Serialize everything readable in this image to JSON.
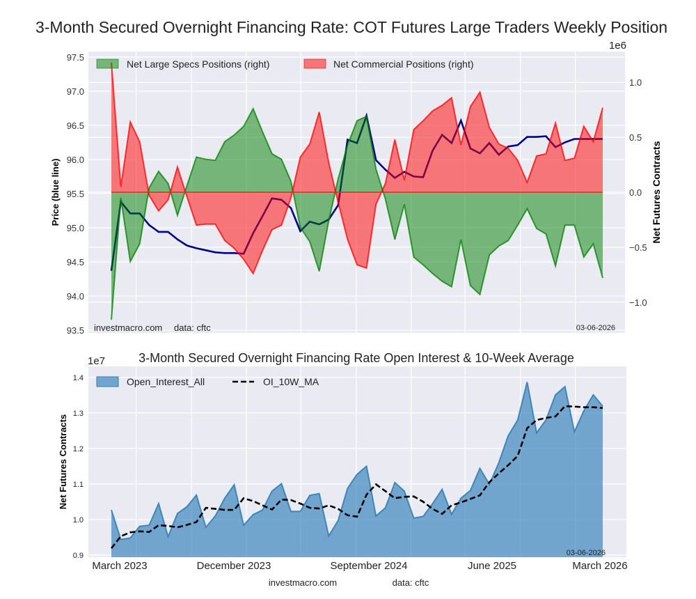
{
  "title": "3-Month Secured Overnight Financing Rate: COT Futures Large Traders Weekly Position",
  "chart_data": [
    {
      "type": "area",
      "ylabel": "Price (blue line)",
      "y2label": "Net Futures Contracts",
      "y2_multiplier": "1e6",
      "ylim": [
        93.46,
        97.58
      ],
      "y2lim": [
        -1.28,
        1.28
      ],
      "yticks": [
        "93.5",
        "94.0",
        "94.5",
        "95.0",
        "95.5",
        "96.0",
        "96.5",
        "97.0",
        "97.5"
      ],
      "y2ticks": [
        "−1.0",
        "−0.5",
        "0.0",
        "0.5",
        "1.0"
      ],
      "grid": true,
      "legend_placement": "top-left",
      "watermark": "investmacro.com",
      "source": "data: cftc",
      "date_label": "03-06-2026",
      "colors": {
        "specs": "#008000",
        "commercial": "#ff0000",
        "price": "#00008b",
        "background": "#eaeaf2"
      },
      "dates": [
        "2023-03-07",
        "2023-03-28",
        "2023-04-18",
        "2023-05-09",
        "2023-05-30",
        "2023-06-20",
        "2023-07-11",
        "2023-08-01",
        "2023-08-22",
        "2023-09-12",
        "2023-10-03",
        "2023-10-24",
        "2023-11-14",
        "2023-12-05",
        "2023-12-26",
        "2024-01-16",
        "2024-02-06",
        "2024-02-27",
        "2024-03-19",
        "2024-04-09",
        "2024-04-30",
        "2024-05-21",
        "2024-06-11",
        "2024-07-02",
        "2024-07-23",
        "2024-08-13",
        "2024-09-03",
        "2024-09-24",
        "2024-10-15",
        "2024-11-05",
        "2024-11-26",
        "2024-12-17",
        "2025-01-07",
        "2025-01-28",
        "2025-02-18",
        "2025-03-11",
        "2025-04-01",
        "2025-04-22",
        "2025-05-13",
        "2025-06-03",
        "2025-06-24",
        "2025-07-15",
        "2025-08-05",
        "2025-08-26",
        "2025-09-16",
        "2025-10-07",
        "2025-10-28",
        "2025-11-18",
        "2025-12-09",
        "2025-12-30",
        "2026-01-20",
        "2026-02-10",
        "2026-03-03"
      ],
      "series": [
        {
          "name": "Net Large Specs Positions (right)",
          "axis": "right",
          "values": [
            -1.16,
            -0.05,
            -0.63,
            -0.47,
            0.04,
            0.19,
            0.08,
            -0.21,
            0.06,
            0.32,
            0.3,
            0.29,
            0.46,
            0.52,
            0.6,
            0.76,
            0.55,
            0.35,
            0.3,
            0.1,
            -0.32,
            -0.45,
            -0.72,
            -0.26,
            0.12,
            0.43,
            0.65,
            0.69,
            0.21,
            -0.06,
            -0.43,
            -0.11,
            -0.59,
            -0.66,
            -0.74,
            -0.81,
            -0.86,
            -0.43,
            -0.85,
            -0.93,
            -0.57,
            -0.49,
            -0.44,
            -0.3,
            -0.15,
            -0.33,
            -0.38,
            -0.67,
            -0.3,
            -0.3,
            -0.59,
            -0.47,
            -0.78
          ]
        },
        {
          "name": "Net Commercial Positions (right)",
          "axis": "right",
          "values": [
            1.18,
            0.05,
            0.64,
            0.46,
            -0.03,
            -0.17,
            -0.07,
            0.23,
            -0.04,
            -0.3,
            -0.29,
            -0.29,
            -0.44,
            -0.51,
            -0.61,
            -0.74,
            -0.53,
            -0.34,
            -0.3,
            -0.05,
            0.32,
            0.44,
            0.73,
            0.27,
            -0.09,
            -0.43,
            -0.66,
            -0.69,
            -0.11,
            0.08,
            0.48,
            0.11,
            0.57,
            0.65,
            0.74,
            0.79,
            0.86,
            0.43,
            0.78,
            0.91,
            0.59,
            0.44,
            0.4,
            0.29,
            0.09,
            0.33,
            0.35,
            0.63,
            0.29,
            0.31,
            0.6,
            0.46,
            0.77
          ]
        },
        {
          "axis": "left",
          "values": [
            94.37,
            95.38,
            95.21,
            95.21,
            95.04,
            94.94,
            94.94,
            94.83,
            94.74,
            94.7,
            94.67,
            94.64,
            94.63,
            94.63,
            94.62,
            94.92,
            95.17,
            95.43,
            95.41,
            95.29,
            94.95,
            95.09,
            95.05,
            95.12,
            95.33,
            96.29,
            96.24,
            96.64,
            95.99,
            95.85,
            95.73,
            95.82,
            95.75,
            95.74,
            96.13,
            96.36,
            96.24,
            96.57,
            96.16,
            96.09,
            96.24,
            96.07,
            96.19,
            96.21,
            96.33,
            96.33,
            96.34,
            96.18,
            96.25,
            96.3,
            96.3,
            96.3,
            96.3
          ]
        }
      ]
    },
    {
      "type": "area",
      "title": "3-Month Secured Overnight Financing Rate Open Interest & 10-Week Average",
      "ylabel": "Net Futures Contracts",
      "y_multiplier": "1e7",
      "ylim": [
        0.894,
        1.431
      ],
      "yticks": [
        "0.9",
        "1.0",
        "1.1",
        "1.2",
        "1.3",
        "1.4"
      ],
      "xticks": [
        "March 2023",
        "December 2023",
        "September 2024",
        "June 2025",
        "March 2026"
      ],
      "grid": true,
      "legend_placement": "top-left",
      "date_label": "03-06-2026",
      "colors": {
        "open_interest": "#1f77b4",
        "ma": "#000000"
      },
      "series": [
        {
          "name": "Open_Interest_All",
          "values": [
            1.027,
            0.944,
            0.948,
            0.981,
            0.984,
            1.045,
            0.952,
            1.017,
            1.036,
            1.069,
            0.978,
            1.01,
            1.06,
            1.098,
            0.984,
            1.014,
            1.027,
            1.08,
            1.101,
            1.023,
            1.023,
            1.068,
            1.073,
            0.954,
            0.997,
            1.088,
            1.127,
            1.15,
            1.01,
            1.033,
            1.104,
            1.08,
            1.004,
            1.009,
            1.045,
            1.085,
            1.015,
            1.06,
            1.082,
            1.144,
            1.099,
            1.16,
            1.236,
            1.28,
            1.387,
            1.244,
            1.28,
            1.351,
            1.374,
            1.247,
            1.306,
            1.351,
            1.319
          ]
        },
        {
          "name": "OI_10W_MA",
          "values": [
            0.919,
            0.953,
            0.964,
            0.967,
            0.965,
            0.984,
            0.982,
            0.978,
            0.985,
            0.993,
            1.033,
            1.03,
            1.027,
            1.027,
            1.06,
            1.052,
            1.04,
            1.028,
            1.056,
            1.055,
            1.045,
            1.033,
            1.031,
            1.04,
            1.03,
            1.012,
            1.008,
            1.07,
            1.099,
            1.08,
            1.06,
            1.064,
            1.065,
            1.05,
            1.03,
            1.016,
            1.04,
            1.048,
            1.058,
            1.068,
            1.105,
            1.13,
            1.153,
            1.179,
            1.257,
            1.28,
            1.286,
            1.29,
            1.319,
            1.318,
            1.316,
            1.316,
            1.314
          ]
        }
      ]
    }
  ],
  "footer": {
    "site": "investmacro.com",
    "source": "data: cftc"
  }
}
